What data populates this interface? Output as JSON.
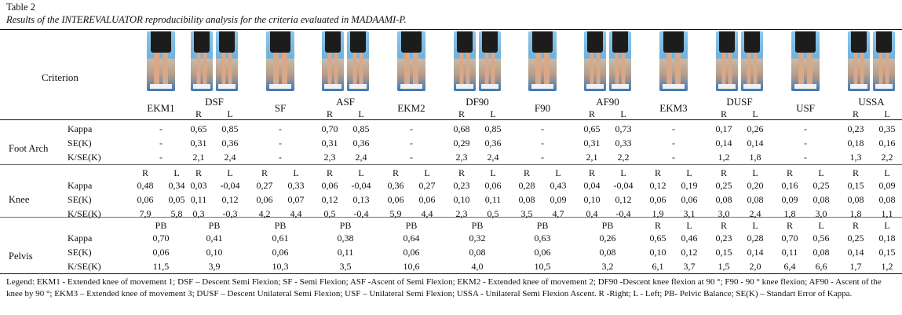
{
  "table_label": "Table 2",
  "caption": "Results of the INTEREVALUATOR reproducibility analysis for the criteria evaluated in MADAAMI-P.",
  "criterion_label": "Criterion",
  "columns": [
    {
      "name": "EKM1",
      "sub": []
    },
    {
      "name": "DSF",
      "sub": [
        "R",
        "L"
      ]
    },
    {
      "name": "SF",
      "sub": []
    },
    {
      "name": "ASF",
      "sub": [
        "R",
        "L"
      ]
    },
    {
      "name": "EKM2",
      "sub": []
    },
    {
      "name": "DF90",
      "sub": [
        "R",
        "L"
      ]
    },
    {
      "name": "F90",
      "sub": []
    },
    {
      "name": "AF90",
      "sub": [
        "R",
        "L"
      ]
    },
    {
      "name": "EKM3",
      "sub": []
    },
    {
      "name": "DUSF",
      "sub": [
        "R",
        "L"
      ]
    },
    {
      "name": "USF",
      "sub": []
    },
    {
      "name": "USSA",
      "sub": [
        "R",
        "L"
      ]
    }
  ],
  "sections": [
    {
      "name": "Foot Arch",
      "subheader": [],
      "rows": [
        {
          "label": "Kappa",
          "cells": [
            "-",
            "0,65",
            "0,85",
            "-",
            "0,70",
            "0,85",
            "-",
            "0,68",
            "0,85",
            "-",
            "0,65",
            "0,73",
            "-",
            "0,17",
            "0,26",
            "-",
            "0,23",
            "0,35"
          ]
        },
        {
          "label": "SE(K)",
          "cells": [
            "-",
            "0,31",
            "0,36",
            "-",
            "0,31",
            "0,36",
            "-",
            "0,29",
            "0,36",
            "-",
            "0,31",
            "0,33",
            "-",
            "0,14",
            "0,14",
            "-",
            "0,18",
            "0,16"
          ]
        },
        {
          "label": "K/SE(K)",
          "cells": [
            "-",
            "2,1",
            "2,4",
            "-",
            "2,3",
            "2,4",
            "-",
            "2,3",
            "2,4",
            "-",
            "2,1",
            "2,2",
            "-",
            "1,2",
            "1,8",
            "-",
            "1,3",
            "2,2"
          ]
        }
      ]
    },
    {
      "name": "Knee",
      "subheader": [
        "R",
        "L",
        "R",
        "L",
        "R",
        "L",
        "R",
        "L",
        "R",
        "L",
        "R",
        "L",
        "R",
        "L",
        "R",
        "L",
        "R",
        "L",
        "R",
        "L",
        "R",
        "L",
        "R",
        "L"
      ],
      "rows": [
        {
          "label": "Kappa",
          "cells": [
            "0,48",
            "0,34",
            "0,03",
            "-0,04",
            "0,27",
            "0,33",
            "0,06",
            "-0,04",
            "0,36",
            "0,27",
            "0,23",
            "0,06",
            "0,28",
            "0,43",
            "0,04",
            "-0,04",
            "0,12",
            "0,19",
            "0,25",
            "0,20",
            "0,16",
            "0,25",
            "0,15",
            "0,09"
          ]
        },
        {
          "label": "SE(K)",
          "cells": [
            "0,06",
            "0,05",
            "0,11",
            "0,12",
            "0,06",
            "0,07",
            "0,12",
            "0,13",
            "0,06",
            "0,06",
            "0,10",
            "0,11",
            "0,08",
            "0,09",
            "0,10",
            "0,12",
            "0,06",
            "0,06",
            "0,08",
            "0,08",
            "0,09",
            "0,08",
            "0,08",
            "0,08"
          ]
        },
        {
          "label": "K/SE(K)",
          "cells": [
            "7,9",
            "5,8",
            "0,3",
            "-0,3",
            "4,2",
            "4,4",
            "0,5",
            "-0,4",
            "5,9",
            "4,4",
            "2,3",
            "0,5",
            "3,5",
            "4,7",
            "0,4",
            "-0,4",
            "1,9",
            "3,1",
            "3,0",
            "2,4",
            "1,8",
            "3,0",
            "1,8",
            "1,1"
          ]
        }
      ]
    },
    {
      "name": "Pelvis",
      "subheader": [
        "PB",
        "PB",
        "PB",
        "PB",
        "PB",
        "PB",
        "PB",
        "PB",
        "R",
        "L",
        "R",
        "L",
        "R",
        "L",
        "R",
        "L"
      ],
      "rows": [
        {
          "label": "Kappa",
          "cells": [
            "0,70",
            "0,41",
            "0,61",
            "0,38",
            "0,64",
            "0,32",
            "0,63",
            "0,26",
            "0,65",
            "0,46",
            "0,23",
            "0,28",
            "0,70",
            "0,56",
            "0,25",
            "0,18"
          ]
        },
        {
          "label": "SE(K)",
          "cells": [
            "0,06",
            "0,10",
            "0,06",
            "0,11",
            "0,06",
            "0,08",
            "0,06",
            "0,08",
            "0,10",
            "0,12",
            "0,15",
            "0,14",
            "0,11",
            "0,08",
            "0,14",
            "0,15"
          ]
        },
        {
          "label": "K/SE(K)",
          "cells": [
            "11,5",
            "3,9",
            "10,3",
            "3,5",
            "10,6",
            "4,0",
            "10,5",
            "3,2",
            "6,1",
            "3,7",
            "1,5",
            "2,0",
            "6,4",
            "6,6",
            "1,7",
            "1,2"
          ]
        }
      ]
    }
  ],
  "legend": "Legend: EKM1 - Extended knee of movement 1; DSF – Descent Semi Flexion; SF - Semi Flexion; ASF -Ascent of Semi Flexion; EKM2 - Extended knee of movement 2; DF90 -Descent knee flexion at 90 °; F90 - 90 ° knee flexion; AF90 - Ascent of the knee by 90 °; EKM3 – Extended knee of movement 3; DUSF – Descent Unilateral Semi Flexion; USF – Unilateral Semi Flexion; USSA - Unilateral Semi Flexion Ascent. R -Right; L - Left; PB- Pelvic Balance; SE(K) – Standart Error of Kappa."
}
